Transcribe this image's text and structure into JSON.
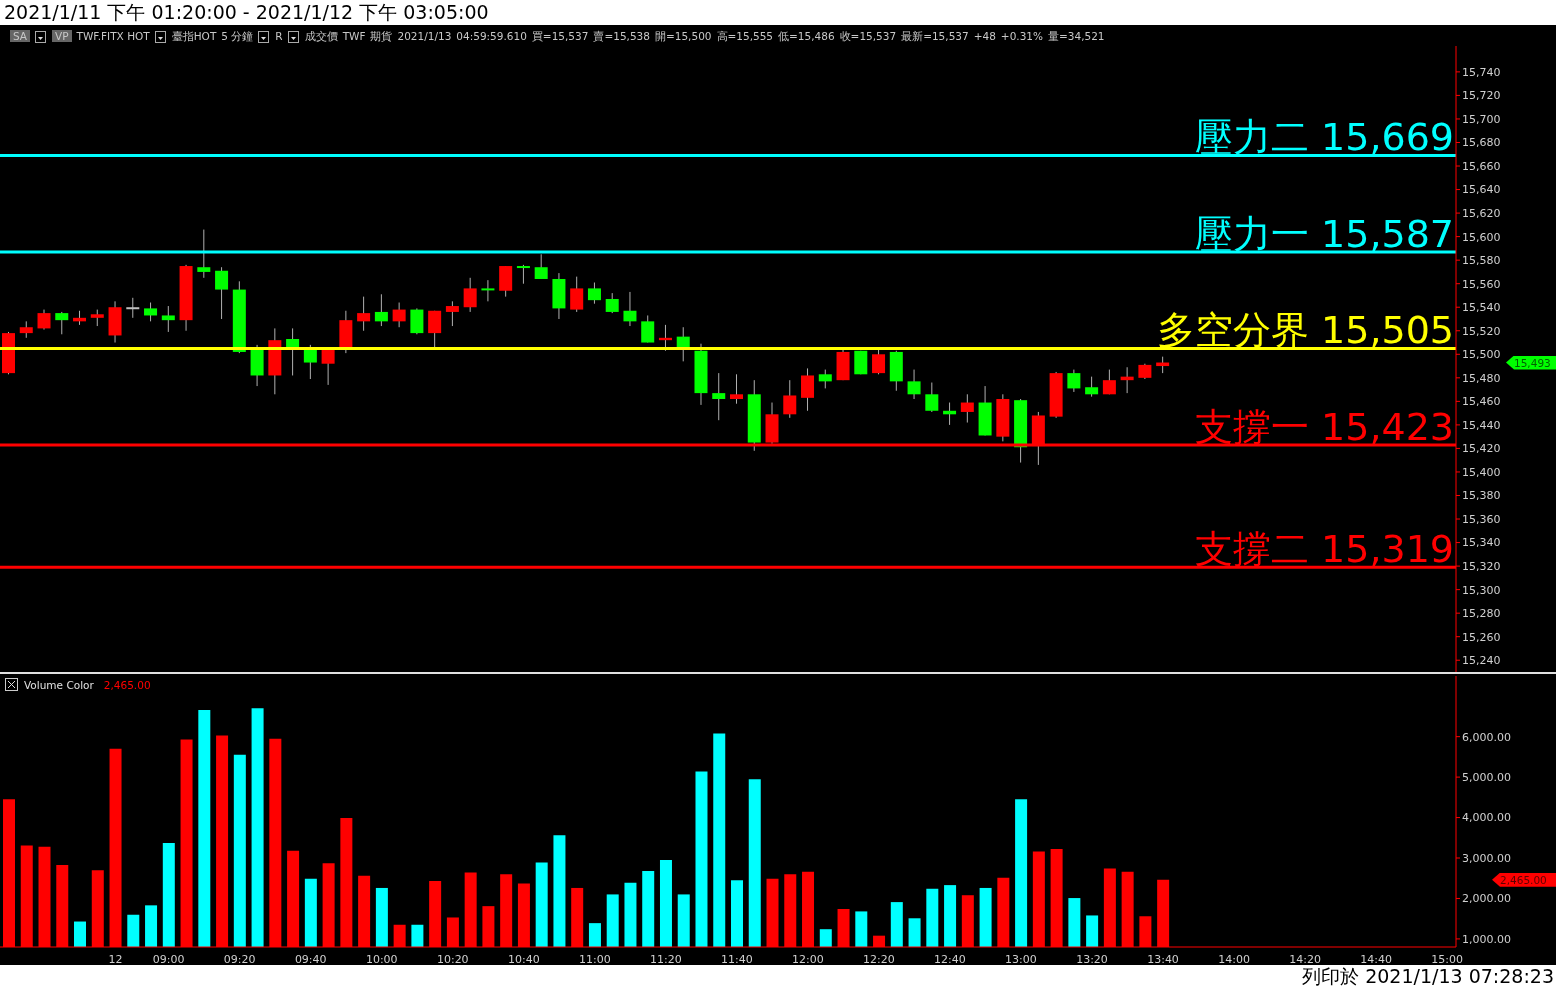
{
  "chart_data": [
    {
      "type": "candlestick",
      "title": "2021/1/11 下午 01:20:00 - 2021/1/12 下午 03:05:00",
      "categories": [
        null,
        null,
        null,
        null,
        null,
        null,
        null,
        null,
        null,
        null,
        null,
        null,
        null,
        null,
        null,
        null,
        null,
        null,
        null,
        null,
        null,
        null,
        null,
        null,
        null,
        null,
        null,
        null,
        null,
        null,
        null,
        null,
        null,
        null,
        null,
        null,
        null,
        null,
        null,
        null,
        null,
        null,
        null,
        null,
        null,
        null,
        null,
        null,
        null,
        null,
        null,
        null,
        null,
        null,
        null,
        null,
        null,
        null,
        null,
        null,
        null,
        null,
        null,
        null,
        null,
        null,
        null,
        null,
        null,
        null,
        null,
        null,
        null,
        null,
        null,
        null,
        null,
        null,
        null,
        null,
        null,
        null
      ],
      "ohlc": [
        [
          15484,
          15519,
          15483,
          15518
        ],
        [
          15518,
          15528,
          15514,
          15523
        ],
        [
          15522,
          15538,
          15521,
          15535
        ],
        [
          15535,
          15536,
          15517,
          15529
        ],
        [
          15528,
          15537,
          15525,
          15531
        ],
        [
          15531,
          15538,
          15524,
          15534
        ],
        [
          15516,
          15545,
          15510,
          15540
        ],
        [
          15540,
          15548,
          15531,
          15540
        ],
        [
          15539,
          15544,
          15528,
          15533
        ],
        [
          15533,
          15541,
          15519,
          15529
        ],
        [
          15529,
          15576,
          15520,
          15575
        ],
        [
          15574,
          15606,
          15565,
          15570
        ],
        [
          15571,
          15574,
          15530,
          15555
        ],
        [
          15555,
          15562,
          15501,
          15502
        ],
        [
          15504,
          15508,
          15473,
          15482
        ],
        [
          15482,
          15522,
          15466,
          15512
        ],
        [
          15513,
          15522,
          15482,
          15506
        ],
        [
          15504,
          15508,
          15479,
          15493
        ],
        [
          15492,
          15505,
          15474,
          15504
        ],
        [
          15506,
          15537,
          15501,
          15529
        ],
        [
          15528,
          15549,
          15520,
          15535
        ],
        [
          15536,
          15551,
          15524,
          15528
        ],
        [
          15528,
          15544,
          15523,
          15538
        ],
        [
          15538,
          15539,
          15517,
          15518
        ],
        [
          15518,
          15537,
          15506,
          15537
        ],
        [
          15536,
          15545,
          15524,
          15541
        ],
        [
          15540,
          15565,
          15536,
          15556
        ],
        [
          15556,
          15563,
          15545,
          15555
        ],
        [
          15554,
          15575,
          15549,
          15575
        ],
        [
          15575,
          15576,
          15560,
          15574
        ],
        [
          15574,
          15585,
          15564,
          15564
        ],
        [
          15564,
          15569,
          15530,
          15539
        ],
        [
          15538,
          15566,
          15536,
          15556
        ],
        [
          15556,
          15561,
          15543,
          15546
        ],
        [
          15547,
          15552,
          15535,
          15536
        ],
        [
          15537,
          15553,
          15524,
          15528
        ],
        [
          15528,
          15533,
          15510,
          15510
        ],
        [
          15512,
          15525,
          15503,
          15514
        ],
        [
          15515,
          15523,
          15494,
          15506
        ],
        [
          15503,
          15509,
          15457,
          15467
        ],
        [
          15467,
          15484,
          15444,
          15462
        ],
        [
          15462,
          15483,
          15458,
          15466
        ],
        [
          15466,
          15478,
          15418,
          15425
        ],
        [
          15425,
          15459,
          15424,
          15449
        ],
        [
          15449,
          15478,
          15446,
          15465
        ],
        [
          15463,
          15488,
          15452,
          15482
        ],
        [
          15483,
          15487,
          15471,
          15477
        ],
        [
          15478,
          15504,
          15478,
          15502
        ],
        [
          15503,
          15503,
          15483,
          15483
        ],
        [
          15484,
          15504,
          15483,
          15500
        ],
        [
          15502,
          15503,
          15469,
          15477
        ],
        [
          15477,
          15487,
          15462,
          15466
        ],
        [
          15466,
          15476,
          15451,
          15452
        ],
        [
          15452,
          15459,
          15440,
          15449
        ],
        [
          15451,
          15466,
          15442,
          15459
        ],
        [
          15459,
          15473,
          15431,
          15431
        ],
        [
          15430,
          15466,
          15426,
          15462
        ],
        [
          15461,
          15462,
          15408,
          15421
        ],
        [
          15422,
          15451,
          15406,
          15448
        ],
        [
          15447,
          15485,
          15446,
          15484
        ],
        [
          15484,
          15487,
          15468,
          15471
        ],
        [
          15472,
          15481,
          15464,
          15466
        ],
        [
          15466,
          15487,
          15466,
          15478
        ],
        [
          15478,
          15489,
          15467,
          15481
        ],
        [
          15480,
          15492,
          15479,
          15491
        ],
        [
          15490,
          15498,
          15484,
          15493
        ],
        null,
        null,
        null,
        null,
        null,
        null,
        null,
        null,
        null,
        null,
        null,
        null,
        null,
        null,
        null,
        null
      ],
      "colors": [
        "#ff0000",
        "#ff0000",
        "#ff0000",
        "#00ff00",
        "#ff0000",
        "#ff0000",
        "#ff0000",
        "#c0c0c0",
        "#00ff00",
        "#00ff00",
        "#ff0000",
        "#00ff00",
        "#00ff00",
        "#00ff00",
        "#00ff00",
        "#ff0000",
        "#00ff00",
        "#00ff00",
        "#ff0000",
        "#ff0000",
        "#ff0000",
        "#00ff00",
        "#ff0000",
        "#00ff00",
        "#ff0000",
        "#ff0000",
        "#ff0000",
        "#00ff00",
        "#ff0000",
        "#00ff00",
        "#00ff00",
        "#00ff00",
        "#ff0000",
        "#00ff00",
        "#00ff00",
        "#00ff00",
        "#00ff00",
        "#ff0000",
        "#00ff00",
        "#00ff00",
        "#00ff00",
        "#ff0000",
        "#00ff00",
        "#ff0000",
        "#ff0000",
        "#ff0000",
        "#00ff00",
        "#ff0000",
        "#00ff00",
        "#ff0000",
        "#00ff00",
        "#00ff00",
        "#00ff00",
        "#00ff00",
        "#ff0000",
        "#00ff00",
        "#ff0000",
        "#00ff00",
        "#ff0000",
        "#ff0000",
        "#00ff00",
        "#00ff00",
        "#ff0000",
        "#ff0000",
        "#ff0000",
        "#ff0000",
        null,
        null,
        null,
        null,
        null,
        null,
        null,
        null,
        null,
        null,
        null,
        null,
        null,
        null,
        null,
        null
      ],
      "ylim": [
        15230,
        15762
      ],
      "yticks": [
        {
          "value": 15240,
          "label": "15,240"
        },
        {
          "value": 15260,
          "label": "15,260"
        },
        {
          "value": 15280,
          "label": "15,280"
        },
        {
          "value": 15300,
          "label": "15,300"
        },
        {
          "value": 15320,
          "label": "15,320"
        },
        {
          "value": 15340,
          "label": "15,340"
        },
        {
          "value": 15360,
          "label": "15,360"
        },
        {
          "value": 15380,
          "label": "15,380"
        },
        {
          "value": 15400,
          "label": "15,400"
        },
        {
          "value": 15420,
          "label": "15,420"
        },
        {
          "value": 15440,
          "label": "15,440"
        },
        {
          "value": 15460,
          "label": "15,460"
        },
        {
          "value": 15480,
          "label": "15,480"
        },
        {
          "value": 15500,
          "label": "15,500"
        },
        {
          "value": 15520,
          "label": "15,520"
        },
        {
          "value": 15540,
          "label": "15,540"
        },
        {
          "value": 15560,
          "label": "15,560"
        },
        {
          "value": 15580,
          "label": "15,580"
        },
        {
          "value": 15600,
          "label": "15,600"
        },
        {
          "value": 15620,
          "label": "15,620"
        },
        {
          "value": 15640,
          "label": "15,640"
        },
        {
          "value": 15660,
          "label": "15,660"
        },
        {
          "value": 15680,
          "label": "15,680"
        },
        {
          "value": 15700,
          "label": "15,700"
        },
        {
          "value": 15720,
          "label": "15,720"
        },
        {
          "value": 15740,
          "label": "15,740"
        }
      ],
      "tick_labels": "y",
      "ref_lines": [
        {
          "axis": "y",
          "value": 15669,
          "label": "壓力二 15,669",
          "color": "#00ffff"
        },
        {
          "axis": "y",
          "value": 15587,
          "label": "壓力一 15,587",
          "color": "#00ffff"
        },
        {
          "axis": "y",
          "value": 15505,
          "label": "多空分界 15,505",
          "color": "#ffff00"
        },
        {
          "axis": "y",
          "value": 15423,
          "label": "支撐一 15,423",
          "color": "#ff0000"
        },
        {
          "axis": "y",
          "value": 15319,
          "label": "支撐二 15,319",
          "color": "#ff0000"
        }
      ],
      "annotations": [
        "SA",
        "VP",
        "TWF.FITX HOT",
        "臺指HOT",
        "5 分鐘",
        "R",
        "成交價",
        "TWF",
        "期貨",
        "2021/1/13",
        "04:59:59.610",
        "買=15,537",
        "賣=15,538",
        "開=15,500",
        "高=15,555",
        "低=15,486",
        "收=15,537",
        "最新=15,537",
        "+48",
        "+0.31%",
        "量=34,521",
        "15,493"
      ]
    },
    {
      "type": "bar",
      "title": "Volume Color",
      "categories": [
        null,
        null,
        null,
        null,
        null,
        null,
        "12",
        null,
        null,
        "09:00",
        null,
        null,
        null,
        "09:20",
        null,
        null,
        null,
        "09:40",
        null,
        null,
        null,
        "10:00",
        null,
        null,
        null,
        "10:20",
        null,
        null,
        null,
        "10:40",
        null,
        null,
        null,
        "11:00",
        null,
        null,
        null,
        "11:20",
        null,
        null,
        null,
        "11:40",
        null,
        null,
        null,
        "12:00",
        null,
        null,
        null,
        "12:20",
        null,
        null,
        null,
        "12:40",
        null,
        null,
        null,
        "13:00",
        null,
        null,
        null,
        "13:20",
        null,
        null,
        null,
        "13:40",
        null,
        null,
        null,
        "14:00",
        null,
        null,
        null,
        "14:20",
        null,
        null,
        null,
        "14:40",
        null,
        null,
        null,
        "15:00"
      ],
      "values": [
        4450,
        3310,
        3280,
        2830,
        1430,
        2700,
        5700,
        1600,
        1830,
        3370,
        5930,
        6660,
        6030,
        5550,
        6700,
        5950,
        3180,
        2490,
        2870,
        3990,
        2560,
        2260,
        1350,
        1350,
        2430,
        1530,
        2640,
        1810,
        2600,
        2370,
        2890,
        3560,
        2260,
        1390,
        2100,
        2390,
        2680,
        2950,
        2100,
        5140,
        6080,
        2450,
        4950,
        2490,
        2600,
        2660,
        1240,
        1740,
        1680,
        1080,
        1910,
        1510,
        2240,
        2330,
        2080,
        2260,
        2510,
        4450,
        3160,
        3220,
        2010,
        1580,
        2740,
        2660,
        1560,
        2465,
        null,
        null,
        null,
        null,
        null,
        null,
        null,
        null,
        null,
        null,
        null,
        null,
        null,
        null,
        null,
        null
      ],
      "colors": [
        "#ff0000",
        "#ff0000",
        "#ff0000",
        "#ff0000",
        "#00ffff",
        "#ff0000",
        "#ff0000",
        "#00ffff",
        "#00ffff",
        "#00ffff",
        "#ff0000",
        "#00ffff",
        "#ff0000",
        "#00ffff",
        "#00ffff",
        "#ff0000",
        "#ff0000",
        "#00ffff",
        "#ff0000",
        "#ff0000",
        "#ff0000",
        "#00ffff",
        "#ff0000",
        "#00ffff",
        "#ff0000",
        "#ff0000",
        "#ff0000",
        "#ff0000",
        "#ff0000",
        "#ff0000",
        "#00ffff",
        "#00ffff",
        "#ff0000",
        "#00ffff",
        "#00ffff",
        "#00ffff",
        "#00ffff",
        "#00ffff",
        "#00ffff",
        "#00ffff",
        "#00ffff",
        "#00ffff",
        "#00ffff",
        "#ff0000",
        "#ff0000",
        "#ff0000",
        "#00ffff",
        "#ff0000",
        "#00ffff",
        "#ff0000",
        "#00ffff",
        "#00ffff",
        "#00ffff",
        "#00ffff",
        "#ff0000",
        "#00ffff",
        "#ff0000",
        "#00ffff",
        "#ff0000",
        "#ff0000",
        "#00ffff",
        "#00ffff",
        "#ff0000",
        "#ff0000",
        "#ff0000",
        "#ff0000",
        null,
        null,
        null,
        null,
        null,
        null,
        null,
        null,
        null,
        null,
        null,
        null,
        null,
        null,
        null,
        null
      ],
      "ylim": [
        800,
        7500
      ],
      "yticks": [
        {
          "value": 1000,
          "label": "1,000.00"
        },
        {
          "value": 2000,
          "label": "2,000.00"
        },
        {
          "value": 3000,
          "label": "3,000.00"
        },
        {
          "value": 4000,
          "label": "4,000.00"
        },
        {
          "value": 5000,
          "label": "5,000.00"
        },
        {
          "value": 6000,
          "label": "6,000.00"
        }
      ],
      "annotations": [
        "2,465.00",
        "2,465.00",
        "列印於 2021/1/13 07:28:23"
      ]
    }
  ]
}
